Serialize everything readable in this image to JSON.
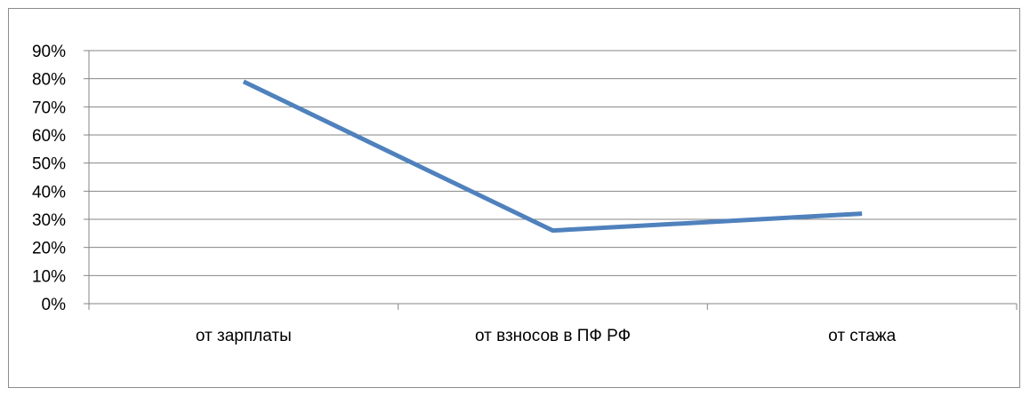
{
  "chart_data": {
    "type": "line",
    "categories": [
      "от зарплаты",
      "от взносов в ПФ РФ",
      "от стажа"
    ],
    "series": [
      {
        "values": [
          0.79,
          0.26,
          0.32
        ]
      }
    ],
    "yticks": [
      "0%",
      "10%",
      "20%",
      "30%",
      "40%",
      "50%",
      "60%",
      "70%",
      "80%",
      "90%"
    ],
    "ylim": [
      0,
      0.9
    ],
    "grid": true,
    "legend": "none",
    "colors": {
      "line": "#4f81bd",
      "grid": "#868686",
      "axis": "#868686"
    }
  }
}
